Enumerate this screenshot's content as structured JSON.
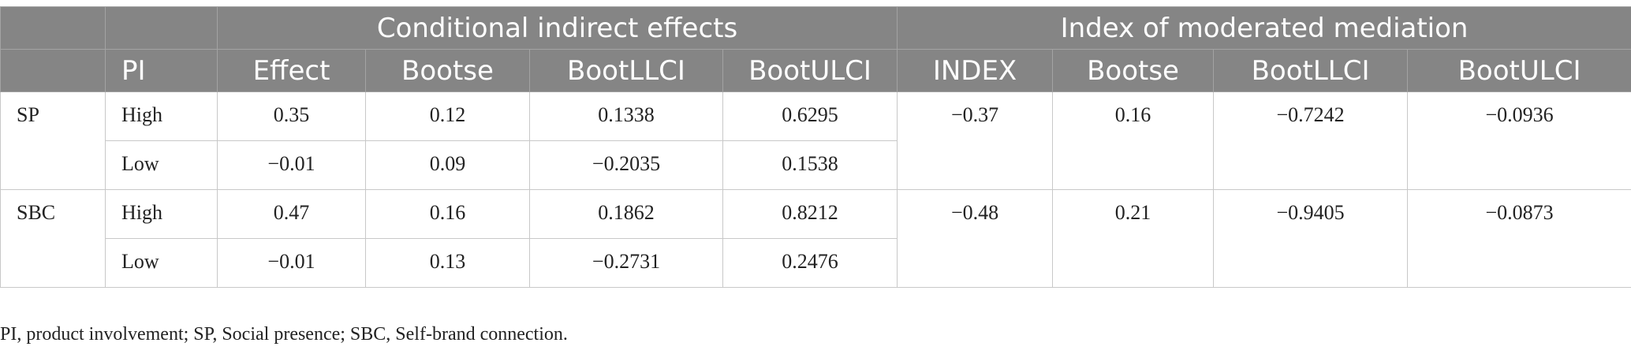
{
  "header": {
    "group_conditional": "Conditional indirect effects",
    "group_index": "Index of moderated mediation",
    "pi": "PI",
    "effect": "Effect",
    "bootse_1": "Bootse",
    "bootllci_1": "BootLLCI",
    "bootulci_1": "BootULCI",
    "index": "INDEX",
    "bootse_2": "Bootse",
    "bootllci_2": "BootLLCI",
    "bootulci_2": "BootULCI"
  },
  "groups": [
    {
      "label": "SP",
      "rows": [
        {
          "pi": "High",
          "effect": "0.35",
          "bootse": "0.12",
          "bootllci": "0.1338",
          "bootulci": "0.6295"
        },
        {
          "pi": "Low",
          "effect": "−0.01",
          "bootse": "0.09",
          "bootllci": "−0.2035",
          "bootulci": "0.1538"
        }
      ],
      "index": "−0.37",
      "index_bootse": "0.16",
      "index_bootllci": "−0.7242",
      "index_bootulci": "−0.0936"
    },
    {
      "label": "SBC",
      "rows": [
        {
          "pi": "High",
          "effect": "0.47",
          "bootse": "0.16",
          "bootllci": "0.1862",
          "bootulci": "0.8212"
        },
        {
          "pi": "Low",
          "effect": "−0.01",
          "bootse": "0.13",
          "bootllci": "−0.2731",
          "bootulci": "0.2476"
        }
      ],
      "index": "−0.48",
      "index_bootse": "0.21",
      "index_bootllci": "−0.9405",
      "index_bootulci": "−0.0873"
    }
  ],
  "footnote": "PI, product involvement; SP, Social presence; SBC, Self-brand connection."
}
